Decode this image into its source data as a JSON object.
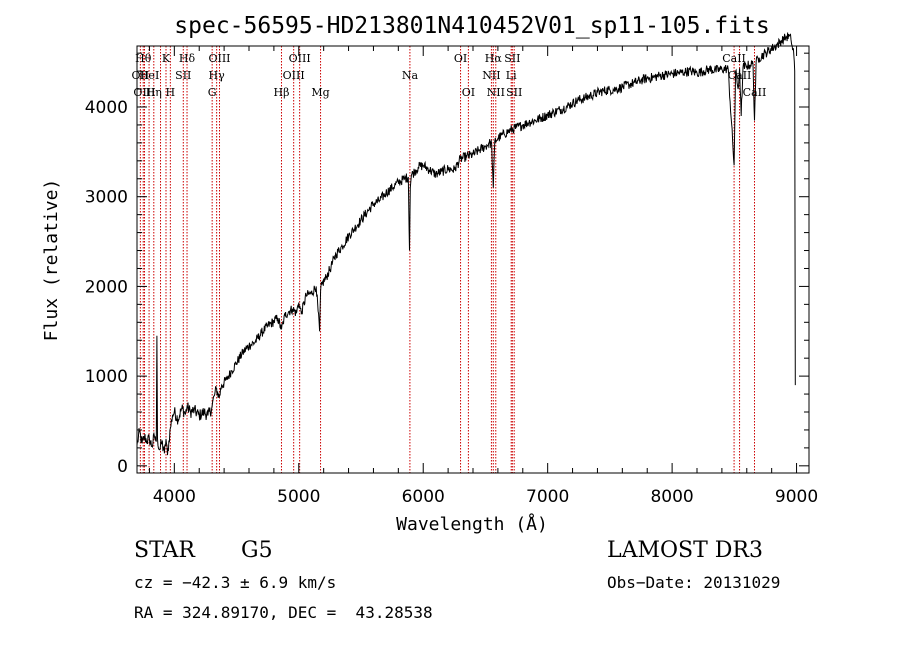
{
  "chart_data": {
    "type": "line",
    "title": "spec-56595-HD213801N410452V01_sp11-105.fits",
    "xlabel": "Wavelength (Å)",
    "ylabel": "Flux (relative)",
    "xlim": [
      3700,
      9100
    ],
    "ylim": [
      -80,
      4680
    ],
    "xticks": [
      4000,
      5000,
      6000,
      7000,
      8000,
      9000
    ],
    "yticks": [
      0,
      1000,
      2000,
      3000,
      4000
    ],
    "grid": false,
    "series": [
      {
        "name": "flux",
        "x": [
          3700,
          3720,
          3740,
          3760,
          3780,
          3800,
          3820,
          3840,
          3855,
          3860,
          3865,
          3880,
          3900,
          3920,
          3933,
          3945,
          3968,
          3985,
          4000,
          4030,
          4060,
          4090,
          4102,
          4130,
          4160,
          4200,
          4240,
          4270,
          4300,
          4320,
          4340,
          4360,
          4380,
          4420,
          4460,
          4500,
          4550,
          4600,
          4650,
          4700,
          4750,
          4800,
          4830,
          4861,
          4890,
          4920,
          4950,
          4980,
          5000,
          5020,
          5060,
          5100,
          5140,
          5167,
          5175,
          5185,
          5220,
          5260,
          5300,
          5350,
          5400,
          5450,
          5500,
          5550,
          5600,
          5650,
          5700,
          5750,
          5800,
          5850,
          5880,
          5890,
          5896,
          5905,
          5930,
          5960,
          6000,
          6050,
          6100,
          6150,
          6200,
          6250,
          6300,
          6350,
          6400,
          6450,
          6500,
          6530,
          6550,
          6563,
          6575,
          6600,
          6650,
          6700,
          6750,
          6800,
          6850,
          6900,
          6950,
          7000,
          7050,
          7100,
          7150,
          7200,
          7250,
          7300,
          7350,
          7400,
          7450,
          7500,
          7550,
          7600,
          7650,
          7700,
          7750,
          7800,
          7850,
          7900,
          7950,
          8000,
          8050,
          8100,
          8150,
          8200,
          8250,
          8300,
          8350,
          8400,
          8450,
          8498,
          8510,
          8530,
          8542,
          8555,
          8570,
          8600,
          8630,
          8650,
          8662,
          8675,
          8700,
          8750,
          8800,
          8850,
          8880,
          8900,
          8920,
          8940,
          8955,
          8960,
          8965,
          8975,
          8985,
          8990
        ],
        "y": [
          230,
          380,
          250,
          320,
          280,
          300,
          220,
          330,
          270,
          1450,
          300,
          180,
          260,
          140,
          300,
          120,
          420,
          560,
          600,
          520,
          640,
          580,
          660,
          600,
          620,
          560,
          600,
          560,
          640,
          780,
          860,
          760,
          900,
          960,
          1060,
          1150,
          1260,
          1340,
          1380,
          1480,
          1560,
          1610,
          1650,
          1520,
          1680,
          1720,
          1750,
          1700,
          1820,
          1700,
          1900,
          1920,
          2000,
          1500,
          1950,
          2020,
          2100,
          2220,
          2360,
          2450,
          2560,
          2650,
          2740,
          2830,
          2920,
          2960,
          3040,
          3100,
          3160,
          3200,
          3220,
          2400,
          3100,
          3240,
          3280,
          3330,
          3350,
          3300,
          3250,
          3280,
          3310,
          3300,
          3420,
          3450,
          3470,
          3520,
          3560,
          3600,
          3580,
          3100,
          3620,
          3650,
          3700,
          3740,
          3770,
          3800,
          3830,
          3850,
          3880,
          3910,
          3940,
          3970,
          4000,
          4040,
          4080,
          4100,
          4130,
          4160,
          4180,
          4190,
          4200,
          4220,
          4250,
          4270,
          4300,
          4320,
          4330,
          4350,
          4360,
          4370,
          4380,
          4390,
          4400,
          4380,
          4400,
          4420,
          4410,
          4420,
          4430,
          3350,
          4400,
          4200,
          4430,
          3900,
          4440,
          4460,
          4470,
          4480,
          3850,
          4500,
          4550,
          4600,
          4650,
          4700,
          4740,
          4760,
          4780,
          4790,
          4750,
          4700,
          4680,
          4650,
          4400,
          900
        ]
      }
    ],
    "lines": [
      {
        "x": 3750,
        "label": "Hθ",
        "row": 1
      },
      {
        "x": 3727,
        "label": "OII",
        "row": 2
      },
      {
        "x": 3760,
        "label": "OIII",
        "row": 3
      },
      {
        "x": 3797,
        "label": "HeI",
        "row": 2
      },
      {
        "x": 3835,
        "label": "Hη",
        "row": 3
      },
      {
        "x": 3889,
        "label": "",
        "row": 0
      },
      {
        "x": 3933,
        "label": "K",
        "row": 1
      },
      {
        "x": 3968,
        "label": "H",
        "row": 3
      },
      {
        "x": 4072,
        "label": "SII",
        "row": 2
      },
      {
        "x": 4102,
        "label": "Hδ",
        "row": 1
      },
      {
        "x": 4304,
        "label": "G",
        "row": 3
      },
      {
        "x": 4340,
        "label": "Hγ",
        "row": 2
      },
      {
        "x": 4363,
        "label": "OIII",
        "row": 1
      },
      {
        "x": 4861,
        "label": "Hβ",
        "row": 3
      },
      {
        "x": 4959,
        "label": "OIII",
        "row": 2
      },
      {
        "x": 5007,
        "label": "OIII",
        "row": 1
      },
      {
        "x": 5175,
        "label": "Mg",
        "row": 3
      },
      {
        "x": 5893,
        "label": "Na",
        "row": 2
      },
      {
        "x": 6300,
        "label": "OI",
        "row": 1
      },
      {
        "x": 6363,
        "label": "OI",
        "row": 3
      },
      {
        "x": 6548,
        "label": "NII",
        "row": 2
      },
      {
        "x": 6563,
        "label": "Hα",
        "row": 1
      },
      {
        "x": 6583,
        "label": "NII",
        "row": 3
      },
      {
        "x": 6716,
        "label": "SII",
        "row": 1
      },
      {
        "x": 6707,
        "label": "Li",
        "row": 2
      },
      {
        "x": 6731,
        "label": "SII",
        "row": 3
      },
      {
        "x": 8498,
        "label": "CaII",
        "row": 1
      },
      {
        "x": 8542,
        "label": "CaII",
        "row": 2
      },
      {
        "x": 8662,
        "label": "CaII",
        "row": 3
      }
    ],
    "line_color": "#cc0000"
  },
  "info": {
    "class": "STAR",
    "subclass": "G5",
    "survey": "LAMOST DR3",
    "cz": "cz = −42.3 ± 6.9 km/s",
    "obs_date": "Obs−Date: 20131029",
    "coords": "RA = 324.89170, DEC =  43.28538"
  }
}
